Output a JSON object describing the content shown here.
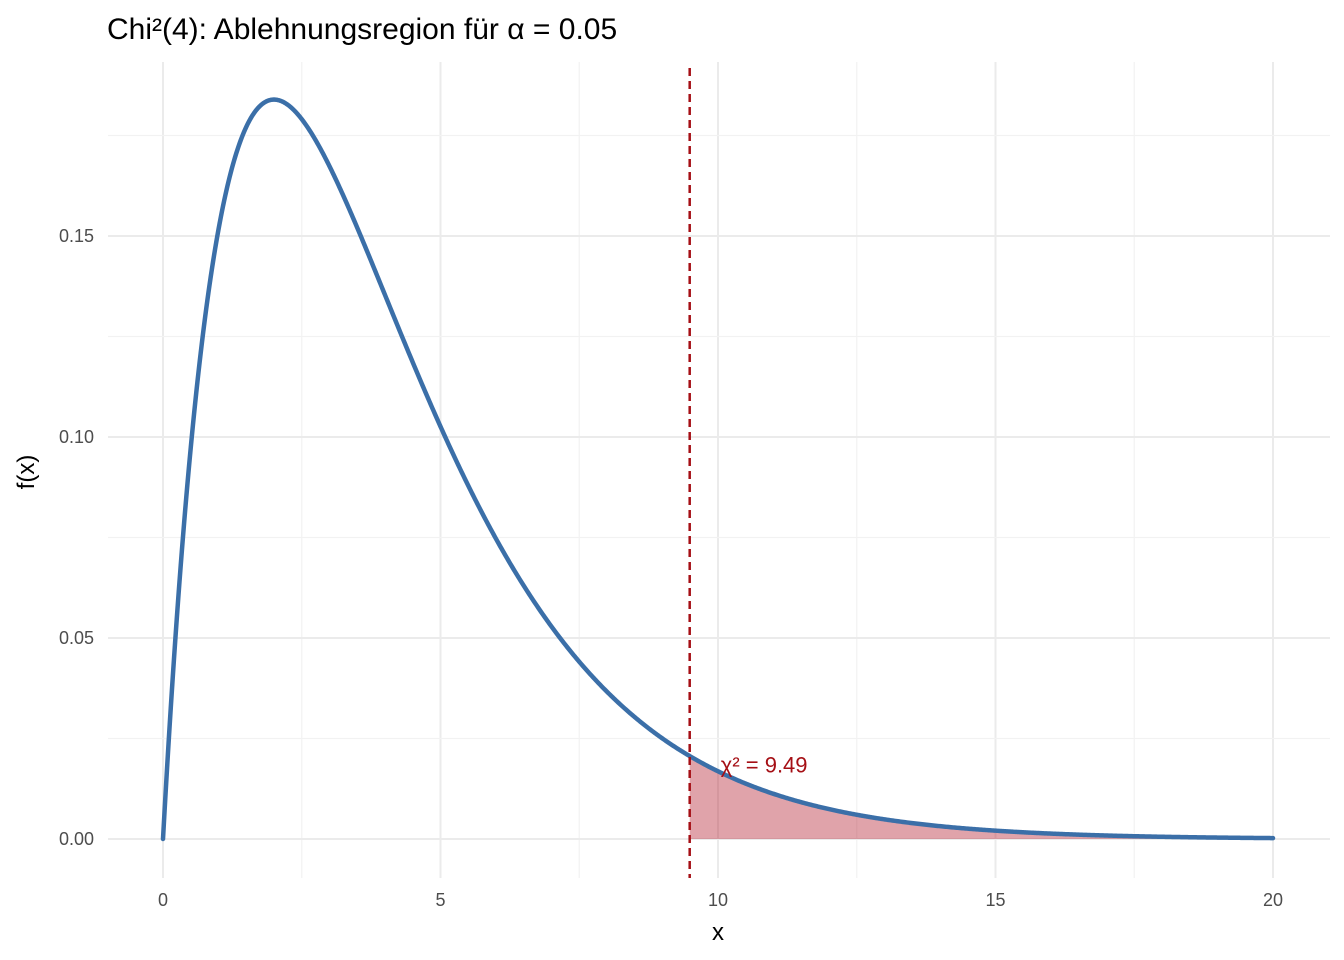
{
  "chart_data": {
    "type": "line",
    "title": "Chi²(4): Ablehnungsregion für α = 0.05",
    "xlabel": "x",
    "ylabel": "f(x)",
    "xlim": [
      0,
      20
    ],
    "ylim": [
      0,
      0.184
    ],
    "x_ticks": [
      0,
      5,
      10,
      15,
      20
    ],
    "x_tick_labels": [
      "0",
      "5",
      "10",
      "15",
      "20"
    ],
    "y_ticks": [
      0.0,
      0.05,
      0.1,
      0.15
    ],
    "y_tick_labels": [
      "0.00",
      "0.05",
      "0.10",
      "0.15"
    ],
    "grid": true,
    "series": [
      {
        "type": "line",
        "distribution": "chi-squared",
        "df": 4,
        "color": "#3b6fa8",
        "x": [
          0,
          0.5,
          1,
          1.5,
          2,
          2.5,
          3,
          3.5,
          4,
          4.5,
          5,
          5.5,
          6,
          6.5,
          7,
          7.5,
          8,
          8.5,
          9,
          9.5,
          10,
          10.5,
          11,
          11.5,
          12,
          12.5,
          13,
          13.5,
          14,
          14.5,
          15,
          15.5,
          16,
          16.5,
          17,
          17.5,
          18,
          18.5,
          19,
          19.5,
          20
        ],
        "y": [
          0.0,
          0.0974,
          0.1516,
          0.1771,
          0.1839,
          0.1791,
          0.1673,
          0.1515,
          0.1353,
          0.1186,
          0.1026,
          0.0878,
          0.0747,
          0.0629,
          0.0528,
          0.0441,
          0.0366,
          0.0303,
          0.025,
          0.0206,
          0.0168,
          0.0138,
          0.0112,
          0.0091,
          0.0074,
          0.006,
          0.0049,
          0.004,
          0.0032,
          0.0026,
          0.0021,
          0.0017,
          0.0013,
          0.0011,
          0.0009,
          0.0007,
          0.0006,
          0.0004,
          0.0004,
          0.0003,
          0.0002
        ]
      }
    ],
    "rejection_region": {
      "x_start": 9.49,
      "x_end": 20,
      "fill_color": "#b2182b",
      "fill_opacity": 0.4
    },
    "critical_line": {
      "x": 9.49,
      "color": "#a50f15",
      "style": "dashed"
    },
    "annotation": {
      "text": "χ² = 9.49",
      "x": 10.05,
      "y": 0.0185,
      "color": "#a50f15"
    }
  }
}
